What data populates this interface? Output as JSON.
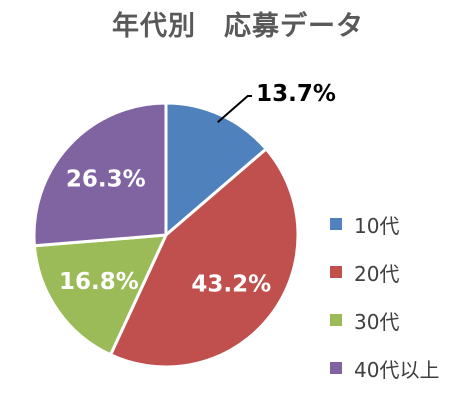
{
  "chart_data": {
    "type": "pie",
    "title": "年代別　応募データ",
    "categories": [
      "10代",
      "20代",
      "30代",
      "40代以上"
    ],
    "values": [
      13.7,
      43.2,
      16.8,
      26.3
    ],
    "labels": [
      "13.7%",
      "43.2%",
      "16.8%",
      "26.3%"
    ],
    "colors": [
      "#4f81bd",
      "#c0504d",
      "#9bbb59",
      "#8064a2"
    ],
    "legend_position": "right",
    "start_angle": "12 o'clock",
    "direction": "clockwise"
  }
}
